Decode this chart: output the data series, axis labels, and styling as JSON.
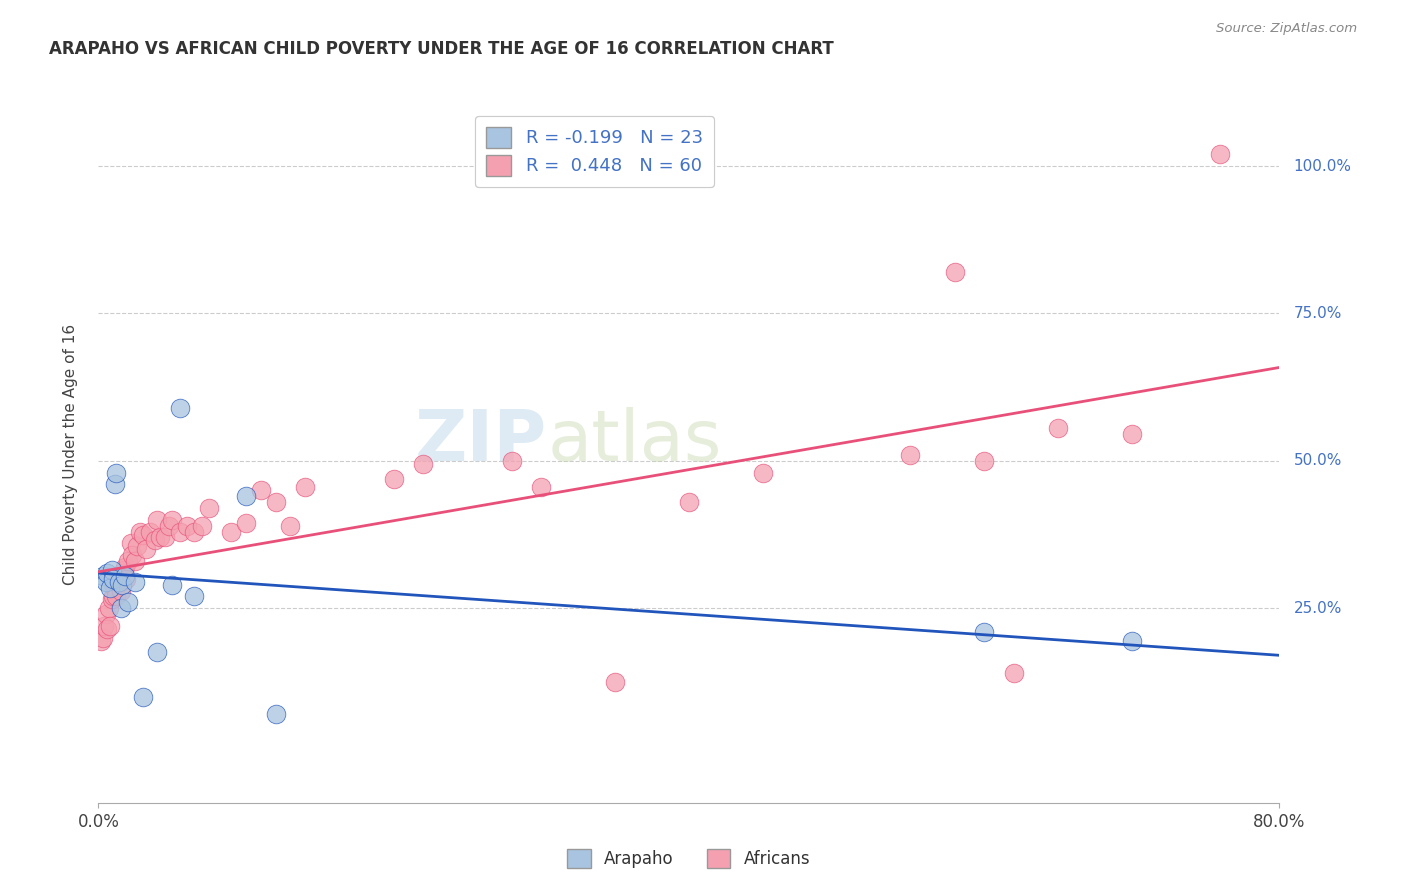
{
  "title": "ARAPAHO VS AFRICAN CHILD POVERTY UNDER THE AGE OF 16 CORRELATION CHART",
  "source": "Source: ZipAtlas.com",
  "ylabel": "Child Poverty Under the Age of 16",
  "xlim": [
    0.0,
    0.8
  ],
  "ylim": [
    -0.08,
    1.1
  ],
  "arapaho_color": "#a8c4e0",
  "africans_color": "#f4a0b0",
  "arapaho_line_color": "#2255bb",
  "africans_line_color": "#e8507a",
  "watermark_zip": "ZIP",
  "watermark_atlas": "atlas",
  "background_color": "#ffffff",
  "grid_color": "#cccccc",
  "arapaho_x": [
    0.003,
    0.005,
    0.006,
    0.008,
    0.009,
    0.01,
    0.011,
    0.012,
    0.014,
    0.015,
    0.016,
    0.018,
    0.02,
    0.025,
    0.03,
    0.04,
    0.05,
    0.055,
    0.065,
    0.1,
    0.12,
    0.6,
    0.7
  ],
  "arapaho_y": [
    0.305,
    0.295,
    0.31,
    0.285,
    0.315,
    0.3,
    0.46,
    0.48,
    0.295,
    0.25,
    0.29,
    0.305,
    0.26,
    0.295,
    0.1,
    0.175,
    0.29,
    0.59,
    0.27,
    0.44,
    0.07,
    0.21,
    0.195
  ],
  "africans_x": [
    0.002,
    0.003,
    0.004,
    0.005,
    0.006,
    0.007,
    0.008,
    0.009,
    0.01,
    0.01,
    0.011,
    0.012,
    0.013,
    0.014,
    0.015,
    0.015,
    0.016,
    0.017,
    0.018,
    0.019,
    0.02,
    0.022,
    0.023,
    0.025,
    0.026,
    0.028,
    0.03,
    0.032,
    0.035,
    0.038,
    0.04,
    0.042,
    0.045,
    0.048,
    0.05,
    0.055,
    0.06,
    0.065,
    0.07,
    0.075,
    0.09,
    0.1,
    0.11,
    0.12,
    0.13,
    0.14,
    0.2,
    0.22,
    0.28,
    0.3,
    0.35,
    0.4,
    0.45,
    0.55,
    0.58,
    0.6,
    0.62,
    0.65,
    0.7,
    0.76
  ],
  "africans_y": [
    0.195,
    0.2,
    0.22,
    0.24,
    0.215,
    0.25,
    0.22,
    0.265,
    0.27,
    0.29,
    0.285,
    0.27,
    0.295,
    0.305,
    0.295,
    0.28,
    0.31,
    0.315,
    0.32,
    0.3,
    0.33,
    0.36,
    0.34,
    0.33,
    0.355,
    0.38,
    0.375,
    0.35,
    0.38,
    0.365,
    0.4,
    0.37,
    0.37,
    0.39,
    0.4,
    0.38,
    0.39,
    0.38,
    0.39,
    0.42,
    0.38,
    0.395,
    0.45,
    0.43,
    0.39,
    0.455,
    0.47,
    0.495,
    0.5,
    0.455,
    0.125,
    0.43,
    0.48,
    0.51,
    0.82,
    0.5,
    0.14,
    0.555,
    0.545,
    1.02
  ]
}
